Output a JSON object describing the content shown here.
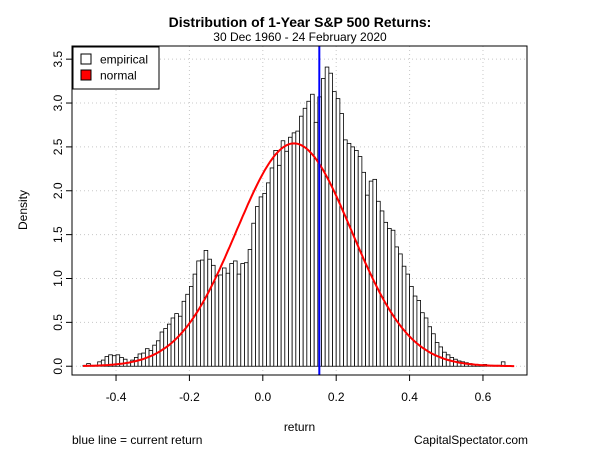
{
  "chart_data": {
    "type": "histogram",
    "title": "Distribution of 1-Year S&P 500 Returns:",
    "subtitle": "30 Dec 1960 - 24 February 2020",
    "xlabel": "return",
    "ylabel": "Density",
    "xlim": [
      -0.52,
      0.72
    ],
    "ylim": [
      -0.1,
      3.65
    ],
    "xticks": [
      "-0.4",
      "-0.2",
      "0.0",
      "0.2",
      "0.4",
      "0.6"
    ],
    "xtick_values": [
      -0.4,
      -0.2,
      0.0,
      0.2,
      0.4,
      0.6
    ],
    "yticks": [
      "0.0",
      "0.5",
      "1.0",
      "1.5",
      "2.0",
      "2.5",
      "3.0",
      "3.5"
    ],
    "ytick_values": [
      0,
      0.5,
      1.0,
      1.5,
      2.0,
      2.5,
      3.0,
      3.5
    ],
    "grid": true,
    "legend_position": "top-left",
    "legend": [
      {
        "label": "empirical",
        "fill": "#ffffff"
      },
      {
        "label": "normal",
        "fill": "#ff0000"
      }
    ],
    "bin_start": -0.49,
    "bin_width": 0.01,
    "densities": [
      0.01,
      0.03,
      0.01,
      0.01,
      0.05,
      0.07,
      0.11,
      0.13,
      0.12,
      0.13,
      0.1,
      0.08,
      0.04,
      0.07,
      0.1,
      0.14,
      0.15,
      0.2,
      0.18,
      0.24,
      0.29,
      0.39,
      0.43,
      0.48,
      0.55,
      0.6,
      0.57,
      0.74,
      0.82,
      0.91,
      1.05,
      1.2,
      1.21,
      1.32,
      1.22,
      1.15,
      1.03,
      1.04,
      1.12,
      1.06,
      1.17,
      1.2,
      1.05,
      1.17,
      1.18,
      1.33,
      1.63,
      1.82,
      1.93,
      1.97,
      2.09,
      2.26,
      2.46,
      2.29,
      2.57,
      2.45,
      2.61,
      2.66,
      2.68,
      2.85,
      2.94,
      3.02,
      3.1,
      2.78,
      3.07,
      3.28,
      3.41,
      3.34,
      3.13,
      3.05,
      2.88,
      2.58,
      2.54,
      2.5,
      2.46,
      2.39,
      2.21,
      1.95,
      2.11,
      2.13,
      1.88,
      1.77,
      1.64,
      1.57,
      1.55,
      1.36,
      1.28,
      1.14,
      1.05,
      0.91,
      0.8,
      0.75,
      0.61,
      0.55,
      0.45,
      0.37,
      0.27,
      0.22,
      0.16,
      0.13,
      0.1,
      0.08,
      0.06,
      0.05,
      0.04,
      0.03,
      0.02,
      0.02,
      0.01,
      0.02,
      0.01,
      0.01,
      0.01,
      0.01,
      0.05
    ],
    "normal_curve": {
      "color": "#ff0000",
      "mean": 0.085,
      "sd": 0.157,
      "peak_density": 2.54
    },
    "current_return": {
      "value": 0.154,
      "color": "#0000ff"
    },
    "footer_note": "blue line = current return",
    "source": "CapitalSpectator.com"
  }
}
